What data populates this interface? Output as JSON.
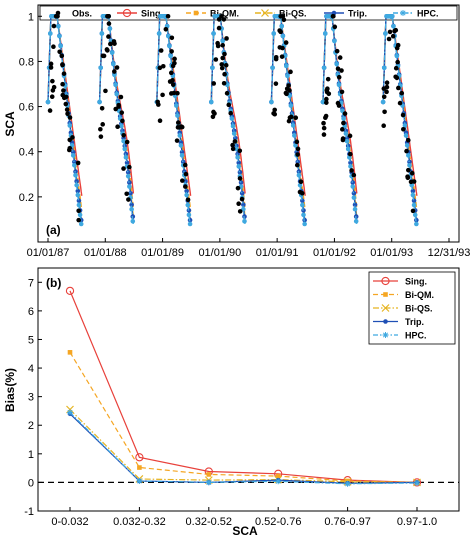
{
  "colors": {
    "Obs.": "#000000",
    "Sing.": "#e8413b",
    "Bi-QM.": "#f5a623",
    "Bi-QS.": "#e6b422",
    "Trip.": "#1f4fb5",
    "HPC.": "#3fa9e0"
  },
  "chart_data": [
    {
      "type": "scatter",
      "panel_label": "(a)",
      "ylabel": "SCA",
      "xlabel": "",
      "ylim": [
        0,
        1.05
      ],
      "yticks": [
        0.2,
        0.4,
        0.6,
        0.8,
        1
      ],
      "xtick_labels": [
        "01/01/87",
        "01/01/88",
        "01/01/89",
        "01/01/90",
        "01/01/91",
        "01/01/92",
        "01/01/93",
        "12/31/93"
      ],
      "grid": false,
      "legend_position": "top",
      "legend": [
        "Obs.",
        "Sing.",
        "Bi-QM.",
        "Bi-QS.",
        "Trip.",
        "HPC."
      ],
      "season_peaks_years": [
        1987.1,
        1988.0,
        1989.0,
        1989.95,
        1991.0,
        1991.9,
        1992.95
      ],
      "series": [
        {
          "name": "Obs.",
          "style": "dots"
        },
        {
          "name": "Sing.",
          "style": "line"
        },
        {
          "name": "Bi-QM.",
          "style": "dashed"
        },
        {
          "name": "Bi-QS.",
          "style": "dashdot"
        },
        {
          "name": "Trip.",
          "style": "line-marker"
        },
        {
          "name": "HPC.",
          "style": "dashdot"
        }
      ]
    },
    {
      "type": "line",
      "panel_label": "(b)",
      "xlabel": "SCA",
      "ylabel": "Bias(%)",
      "categories": [
        "0-0.032",
        "0.032-0.32",
        "0.32-0.52",
        "0.52-0.76",
        "0.76-0.97",
        "0.97-1.0"
      ],
      "ylim": [
        -1,
        7.5
      ],
      "yticks": [
        -1,
        0,
        1,
        2,
        3,
        4,
        5,
        6,
        7
      ],
      "zero_line": "dashed",
      "legend_position": "top-right",
      "series": [
        {
          "name": "Sing.",
          "values": [
            6.7,
            0.88,
            0.38,
            0.3,
            0.08,
            0.0
          ]
        },
        {
          "name": "Bi-QM.",
          "values": [
            4.55,
            0.52,
            0.28,
            0.22,
            0.05,
            0.0
          ]
        },
        {
          "name": "Bi-QS.",
          "values": [
            2.55,
            0.12,
            0.08,
            0.1,
            0.02,
            0.0
          ]
        },
        {
          "name": "Trip.",
          "values": [
            2.4,
            0.05,
            0.0,
            0.08,
            -0.03,
            0.0
          ]
        },
        {
          "name": "HPC.",
          "values": [
            2.45,
            0.05,
            0.0,
            0.04,
            -0.05,
            -0.02
          ]
        }
      ]
    }
  ]
}
